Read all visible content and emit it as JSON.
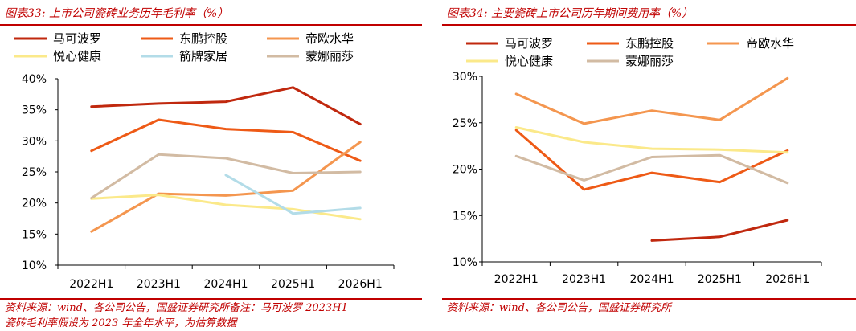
{
  "panels": [
    {
      "title": "图表33:  上市公司瓷砖业务历年毛利率（%）",
      "source_lines": [
        "资料来源：wind、各公司公告，国盛证券研究所备注：马可波罗 2023H1",
        "瓷砖毛利率假设为 2023 年全年水平，为估算数据"
      ]
    },
    {
      "title": "图表34:  主要瓷砖上市公司历年期间费用率（%）",
      "source_lines": [
        "资料来源：wind、各公司公告，国盛证券研究所"
      ]
    }
  ],
  "chart_data": [
    {
      "type": "line",
      "categories": [
        "2022H1",
        "2023H1",
        "2024H1",
        "2025H1",
        "2026H1"
      ],
      "ylim": [
        10,
        40
      ],
      "yticks": [
        10,
        15,
        20,
        25,
        30,
        35,
        40
      ],
      "ytick_suffix": "%",
      "legend_columns": 3,
      "grid": false,
      "series": [
        {
          "name": "马可波罗",
          "color": "#c0280e",
          "values": [
            35.5,
            36.0,
            36.3,
            38.6,
            32.7
          ]
        },
        {
          "name": "东鹏控股",
          "color": "#ee5a16",
          "values": [
            28.4,
            33.4,
            31.9,
            31.4,
            26.8
          ]
        },
        {
          "name": "帝欧水华",
          "color": "#f4964f",
          "values": [
            15.4,
            21.5,
            21.2,
            22.0,
            29.8
          ]
        },
        {
          "name": "悦心健康",
          "color": "#fbe98a",
          "values": [
            20.7,
            21.3,
            19.7,
            19.0,
            17.4
          ]
        },
        {
          "name": "箭牌家居",
          "color": "#b3dce8",
          "values": [
            null,
            null,
            24.5,
            18.3,
            19.2
          ]
        },
        {
          "name": "蒙娜丽莎",
          "color": "#d2bba3",
          "values": [
            20.8,
            27.8,
            27.2,
            24.8,
            25.0
          ]
        }
      ]
    },
    {
      "type": "line",
      "categories": [
        "2022H1",
        "2023H1",
        "2024H1",
        "2025H1",
        "2026H1"
      ],
      "ylim": [
        10,
        30
      ],
      "yticks": [
        10,
        15,
        20,
        25,
        30
      ],
      "ytick_suffix": "%",
      "legend_columns": 3,
      "grid": false,
      "series": [
        {
          "name": "马可波罗",
          "color": "#c0280e",
          "values": [
            null,
            null,
            12.3,
            12.7,
            14.5
          ]
        },
        {
          "name": "东鹏控股",
          "color": "#ee5a16",
          "values": [
            24.2,
            17.8,
            19.6,
            18.6,
            22.0
          ]
        },
        {
          "name": "帝欧水华",
          "color": "#f4964f",
          "values": [
            28.1,
            24.9,
            26.3,
            25.3,
            29.8
          ]
        },
        {
          "name": "悦心健康",
          "color": "#fbe98a",
          "values": [
            24.5,
            22.9,
            22.2,
            22.1,
            21.8
          ]
        },
        {
          "name": "蒙娜丽莎",
          "color": "#d2bba3",
          "values": [
            21.4,
            18.8,
            21.3,
            21.5,
            18.5
          ]
        }
      ]
    }
  ]
}
